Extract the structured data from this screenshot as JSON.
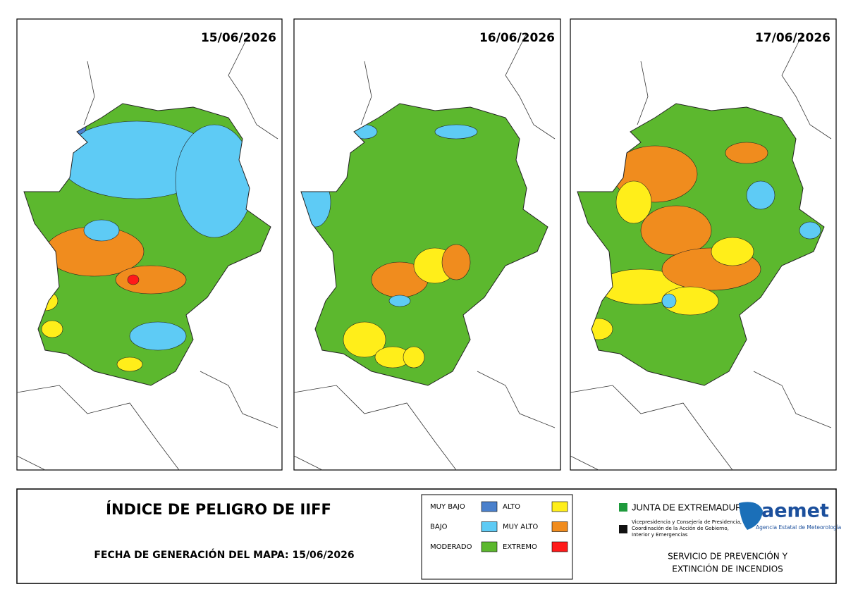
{
  "maps": [
    {
      "date": "15/06/2026"
    },
    {
      "date": "16/06/2026"
    },
    {
      "date": "17/06/2026"
    }
  ],
  "title": "ÍNDICE DE PELIGRO DE IIFF",
  "generation": "FECHA DE GENERACIÓN DEL MAPA: 15/06/2026",
  "legend": [
    {
      "label": "MUY BAJO",
      "color": "#4a80cc"
    },
    {
      "label": "BAJO",
      "color": "#5ecbf5"
    },
    {
      "label": "MODERADO",
      "color": "#5cb82e"
    },
    {
      "label": "ALTO",
      "color": "#ffee1a"
    },
    {
      "label": "MUY ALTO",
      "color": "#f08c1e"
    },
    {
      "label": "EXTREMO",
      "color": "#ff1a1a"
    }
  ],
  "junta": "JUNTA DE EXTREMADURA",
  "junta_sub": [
    "Vicepresidencia y Consejería de Presidencia,",
    "Coordinación de la Acción de Gobierno,",
    "Interior y Emergencias"
  ],
  "aemet": "aemet",
  "aemet_sub": "Agencia Estatal de Meteorología",
  "service": [
    "SERVICIO DE PREVENCIÓN Y",
    "EXTINCIÓN DE INCENDIOS"
  ]
}
